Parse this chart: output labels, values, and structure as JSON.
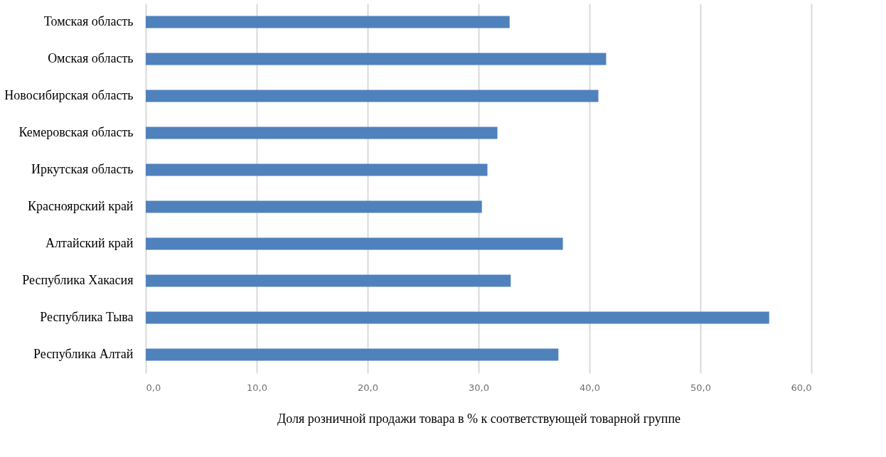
{
  "chart_data": {
    "type": "bar",
    "orientation": "horizontal",
    "categories": [
      "Томская область",
      "Омская область",
      "Новосибирская область",
      "Кемеровская область",
      "Иркутская область",
      "Красноярский край",
      "Алтайский край",
      "Республика Хакасия",
      "Республика Тыва",
      "Республика Алтай"
    ],
    "values": [
      32.8,
      41.5,
      40.8,
      31.7,
      30.8,
      30.3,
      37.6,
      32.9,
      56.2,
      37.2
    ],
    "color": "#4f81bd",
    "xlim": [
      0,
      60
    ],
    "xticks": [
      {
        "value": 0,
        "label": "0,0"
      },
      {
        "value": 10,
        "label": "10,0"
      },
      {
        "value": 20,
        "label": "20,0"
      },
      {
        "value": 30,
        "label": "30,0"
      },
      {
        "value": 40,
        "label": "40,0"
      },
      {
        "value": 50,
        "label": "50,0"
      },
      {
        "value": 60,
        "label": "60,0"
      }
    ],
    "xlabel": "Доля розничной продажи товара в % к соответствующей товарной группе",
    "grid": "x"
  }
}
